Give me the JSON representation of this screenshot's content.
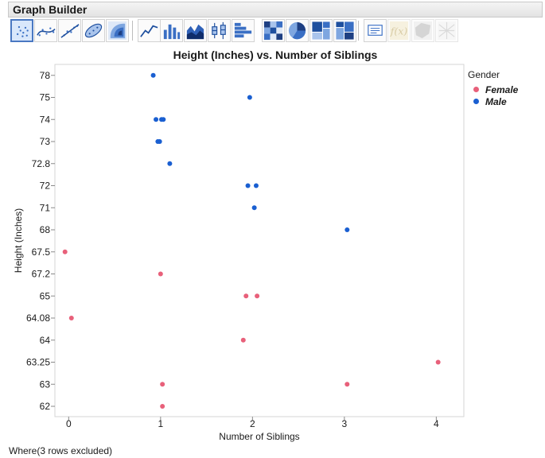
{
  "window": {
    "title": "Graph Builder"
  },
  "toolbar": {
    "buttons": [
      {
        "icon": "points-icon",
        "selected": true
      },
      {
        "icon": "smoother-icon"
      },
      {
        "icon": "line-of-fit-icon"
      },
      {
        "icon": "ellipse-icon"
      },
      {
        "icon": "contour-icon"
      },
      {
        "icon": "line-icon"
      },
      {
        "icon": "bar-icon"
      },
      {
        "icon": "area-icon"
      },
      {
        "icon": "box-plot-icon"
      },
      {
        "icon": "histogram-icon"
      },
      {
        "icon": "heatmap-icon"
      },
      {
        "icon": "pie-icon"
      },
      {
        "icon": "treemap-icon"
      },
      {
        "icon": "mosaic-icon"
      },
      {
        "icon": "caption-box-icon"
      },
      {
        "icon": "formula-icon",
        "disabled": true
      },
      {
        "icon": "map-shapes-icon",
        "disabled": true
      },
      {
        "icon": "parallel-plot-icon",
        "disabled": true
      }
    ]
  },
  "chart_data": {
    "type": "scatter",
    "title": "Height (Inches) vs. Number of Siblings",
    "xlabel": "Number of Siblings",
    "ylabel": "Height (Inches)",
    "x_ticks": [
      "0",
      "1",
      "2",
      "3",
      "4"
    ],
    "xlim": [
      -0.15,
      4.3
    ],
    "y_categories": [
      "62",
      "63",
      "63.25",
      "64",
      "64.08",
      "65",
      "67.2",
      "67.5",
      "68",
      "71",
      "72",
      "72.8",
      "73",
      "74",
      "75",
      "78"
    ],
    "legend_title": "Gender",
    "legend_position": "right",
    "series": [
      {
        "name": "Female",
        "color": "#e8607a",
        "points": [
          {
            "x": 1.02,
            "y": "62"
          },
          {
            "x": 1.02,
            "y": "63"
          },
          {
            "x": 3.03,
            "y": "63"
          },
          {
            "x": 4.02,
            "y": "63.25"
          },
          {
            "x": 1.9,
            "y": "64"
          },
          {
            "x": 0.03,
            "y": "64.08"
          },
          {
            "x": 1.93,
            "y": "65"
          },
          {
            "x": 2.05,
            "y": "65"
          },
          {
            "x": 1.0,
            "y": "67.2"
          },
          {
            "x": -0.04,
            "y": "67.5"
          }
        ]
      },
      {
        "name": "Male",
        "color": "#1a5fd1",
        "points": [
          {
            "x": 3.03,
            "y": "68"
          },
          {
            "x": 2.02,
            "y": "71"
          },
          {
            "x": 1.95,
            "y": "72"
          },
          {
            "x": 2.04,
            "y": "72"
          },
          {
            "x": 1.1,
            "y": "72.8"
          },
          {
            "x": 0.97,
            "y": "73"
          },
          {
            "x": 0.99,
            "y": "73"
          },
          {
            "x": 0.95,
            "y": "74"
          },
          {
            "x": 1.01,
            "y": "74"
          },
          {
            "x": 1.03,
            "y": "74"
          },
          {
            "x": 1.97,
            "y": "75"
          },
          {
            "x": 0.92,
            "y": "78"
          }
        ]
      }
    ]
  },
  "footer": {
    "text": "Where(3 rows excluded)"
  }
}
